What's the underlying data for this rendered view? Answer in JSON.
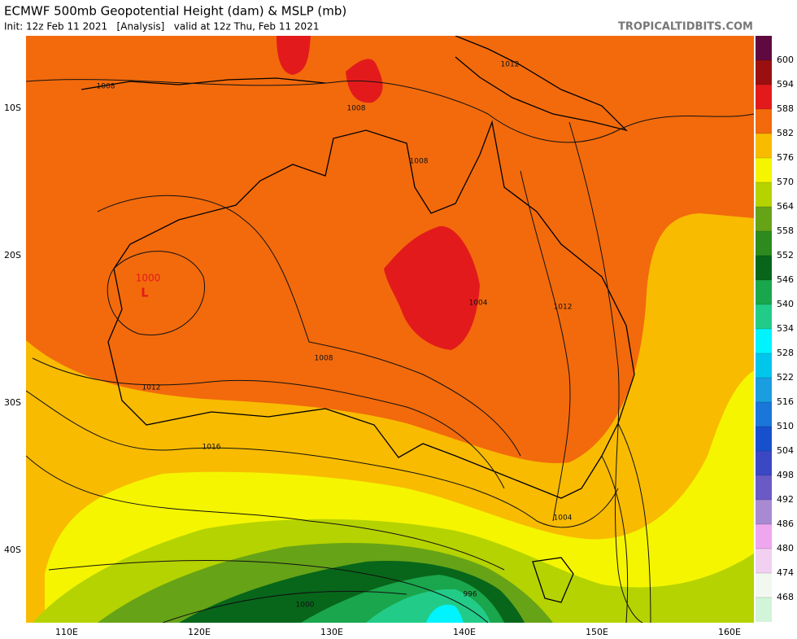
{
  "header": {
    "title": "ECMWF 500mb Geopotential Height (dam) & MSLP (mb)",
    "subtitle": "Init: 12z Feb 11 2021   [Analysis]   valid at 12z Thu, Feb 11 2021",
    "brand": "TROPICALTIDBITS.COM"
  },
  "map": {
    "lat_labels": [
      "10S",
      "20S",
      "30S",
      "40S"
    ],
    "lon_labels": [
      "110E",
      "120E",
      "130E",
      "140E",
      "150E",
      "160E"
    ],
    "contour_labels": [
      "1008",
      "1008",
      "1012",
      "1008",
      "1004",
      "1012",
      "1008",
      "1012",
      "1016",
      "1004",
      "996",
      "1000"
    ],
    "low": {
      "pressure": "1000",
      "symbol": "L"
    }
  },
  "colorbar": {
    "levels": [
      600,
      594,
      588,
      582,
      576,
      570,
      564,
      558,
      552,
      546,
      540,
      534,
      528,
      522,
      516,
      510,
      504,
      498,
      492,
      486,
      480,
      474,
      468
    ],
    "colors": [
      "#5e0a40",
      "#9a1010",
      "#e31a1c",
      "#f26a0c",
      "#f8bb00",
      "#f5f500",
      "#b5d300",
      "#66a317",
      "#2d8a1c",
      "#07661a",
      "#1aa64c",
      "#22cc88",
      "#00f4ff",
      "#00c6ec",
      "#1a9ee0",
      "#1a76d8",
      "#1650cc",
      "#3b48c4",
      "#6a5ac6",
      "#a88ad2",
      "#eea6ee",
      "#f2d0f2",
      "#f2f8f0",
      "#d2f4d8"
    ]
  }
}
